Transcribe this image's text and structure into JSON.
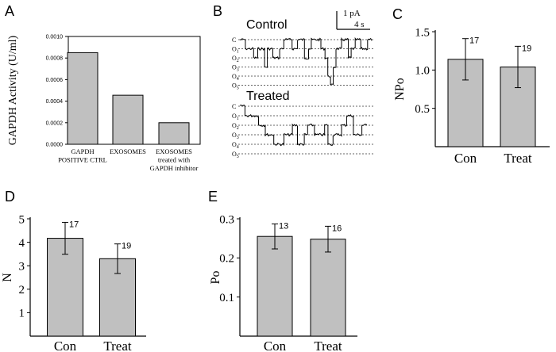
{
  "panels": {
    "A": {
      "letter": "A"
    },
    "B": {
      "letter": "B"
    },
    "C": {
      "letter": "C"
    },
    "D": {
      "letter": "D"
    },
    "E": {
      "letter": "E"
    }
  },
  "trace": {
    "control_label": "Control",
    "treated_label": "Treated",
    "scale_current": "1 pA",
    "scale_time": "4 s",
    "control_levels": [
      "C",
      "O1",
      "O2",
      "O3",
      "O4",
      "O5"
    ],
    "treated_levels": [
      "C",
      "O1",
      "O2",
      "O3",
      "O4",
      "O5"
    ]
  },
  "chart_data": [
    {
      "panel": "A",
      "type": "bar",
      "ylabel": "GAPDH Activity (U/ml)",
      "ylim": [
        0,
        0.001
      ],
      "yticks": [
        "0.0000",
        "0.0002",
        "0.0004",
        "0.0006",
        "0.0008",
        "0.0010"
      ],
      "categories": [
        [
          "GAPDH",
          "POSITIVE  CTRL"
        ],
        [
          "EXOSOMES"
        ],
        [
          "EXOSOMES",
          "treated with",
          "GAPDH  inhibitor"
        ]
      ],
      "values": [
        0.00085,
        0.000455,
        0.0002
      ]
    },
    {
      "panel": "C",
      "type": "bar",
      "ylabel": "NPo",
      "ylim": [
        0,
        1.5
      ],
      "yticks": [
        "0.5",
        "1.0",
        "1.5"
      ],
      "categories": [
        "Con",
        "Treat"
      ],
      "values": [
        1.14,
        1.04
      ],
      "errors": [
        0.27,
        0.27
      ],
      "n_labels": [
        "17",
        "19"
      ]
    },
    {
      "panel": "D",
      "type": "bar",
      "ylabel": "N",
      "ylim": [
        0,
        5
      ],
      "yticks": [
        "1",
        "2",
        "3",
        "4",
        "5"
      ],
      "categories": [
        "Con",
        "Treat"
      ],
      "values": [
        4.17,
        3.3
      ],
      "errors": [
        0.68,
        0.63
      ],
      "n_labels": [
        "17",
        "19"
      ]
    },
    {
      "panel": "E",
      "type": "bar",
      "ylabel": "Po",
      "ylim": [
        0,
        0.3
      ],
      "yticks": [
        "0.1",
        "0.2",
        "0.3"
      ],
      "categories": [
        "Con",
        "Treat"
      ],
      "values": [
        0.255,
        0.248
      ],
      "errors": [
        0.032,
        0.033
      ],
      "n_labels": [
        "13",
        "16"
      ]
    }
  ]
}
